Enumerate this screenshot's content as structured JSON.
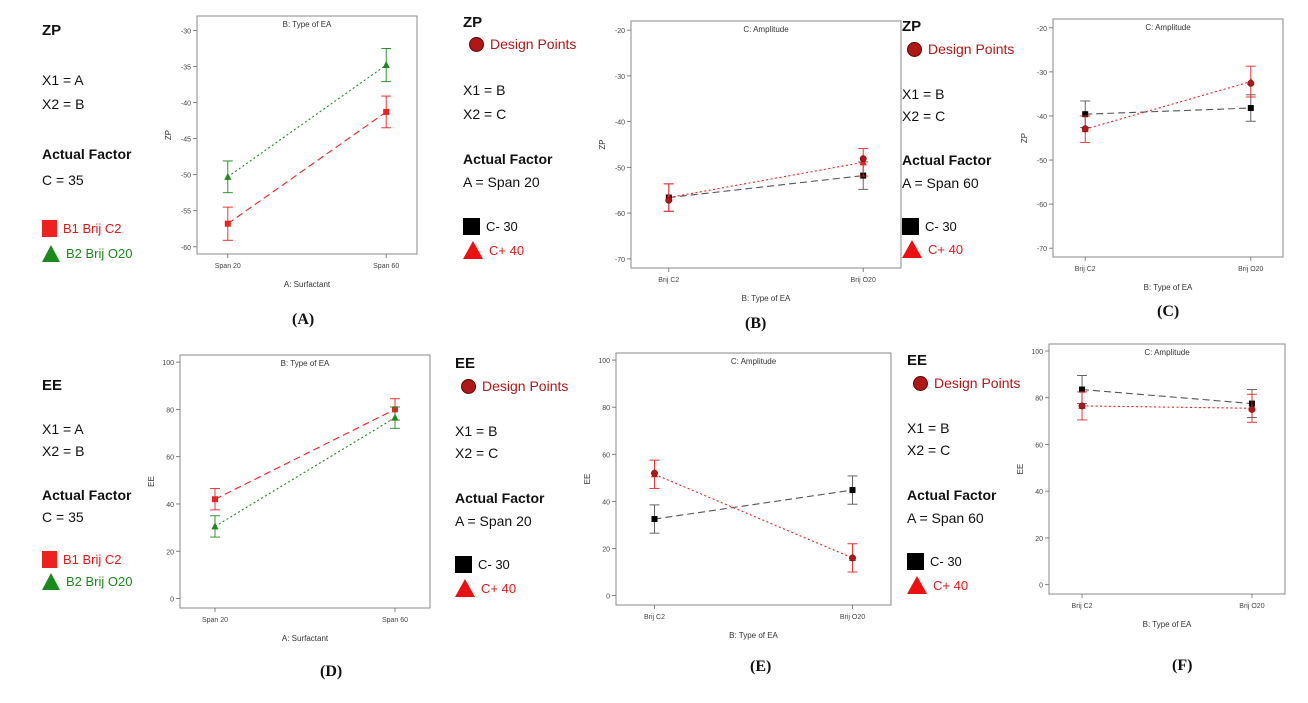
{
  "captions": [
    "(A)",
    "(B)",
    "(C)",
    "(D)",
    "(E)",
    "(F)"
  ],
  "legends": {
    "A": {
      "title": "ZP",
      "x1": "X1 = A",
      "x2": "X2 = B",
      "actual": "Actual Factor",
      "fixed": "C = 35",
      "l1": "B1 Brij C2",
      "l2": "B2 Brij O20",
      "c1": "#ee2020",
      "c2": "#1a8a1a"
    },
    "B": {
      "title": "ZP",
      "dp": "Design Points",
      "x1": "X1 = B",
      "x2": "X2 = C",
      "actual": "Actual Factor",
      "fixed": "A = Span 20",
      "l1": "C- 30",
      "l2": "C+ 40"
    },
    "C": {
      "title": "ZP",
      "dp": "Design Points",
      "x1": "X1 = B",
      "x2": "X2 = C",
      "actual": "Actual Factor",
      "fixed": "A = Span 60",
      "l1": "C- 30",
      "l2": "C+ 40"
    },
    "D": {
      "title": "EE",
      "x1": "X1 = A",
      "x2": "X2 = B",
      "actual": "Actual Factor",
      "fixed": "C = 35",
      "l1": "B1 Brij C2",
      "l2": "B2 Brij O20",
      "c1": "#ee2020",
      "c2": "#1a8a1a"
    },
    "E": {
      "title": "EE",
      "dp": "Design Points",
      "x1": "X1 = B",
      "x2": "X2 = C",
      "actual": "Actual Factor",
      "fixed": "A = Span 20",
      "l1": "C- 30",
      "l2": "C+ 40"
    },
    "F": {
      "title": "EE",
      "dp": "Design Points",
      "x1": "X1 = B",
      "x2": "X2 = C",
      "actual": "Actual Factor",
      "fixed": "A = Span 60",
      "l1": "C- 30",
      "l2": "C+ 40"
    }
  },
  "chart_data": [
    {
      "id": "A",
      "type": "line",
      "title": "B: Type of EA",
      "xlabel": "A: Surfactant",
      "ylabel": "ZP",
      "categories": [
        "Span 20",
        "Span 60"
      ],
      "ylim": [
        -61,
        -28
      ],
      "yticks": [
        -60,
        -55,
        -50,
        -45,
        -40,
        -35,
        -30
      ],
      "series": [
        {
          "name": "B1 Brij C2",
          "marker": "square",
          "dash": "dashed",
          "color": "#ee2020",
          "values": [
            -56.8,
            -41.3
          ],
          "err": [
            2.3,
            2.2
          ]
        },
        {
          "name": "B2 Brij O20",
          "marker": "triangle",
          "dash": "dotted",
          "color": "#1a8a1a",
          "values": [
            -50.3,
            -34.8
          ],
          "err": [
            2.2,
            2.3
          ]
        }
      ]
    },
    {
      "id": "B",
      "type": "line",
      "title": "C: Amplitude",
      "xlabel": "B: Type of EA",
      "ylabel": "ZP",
      "categories": [
        "Brij C2",
        "Brij O20"
      ],
      "ylim": [
        -72,
        -18
      ],
      "yticks": [
        -70,
        -60,
        -50,
        -40,
        -30,
        -20
      ],
      "series": [
        {
          "name": "C- 30",
          "marker": "square",
          "dash": "dashed",
          "color": "#000000",
          "values": [
            -56.6,
            -51.8
          ],
          "err": [
            3,
            3
          ]
        },
        {
          "name": "C+ 40",
          "marker": "triangle",
          "dash": "dotted",
          "color": "#ee2020",
          "values": [
            -56.6,
            -48.9
          ],
          "err": [
            3,
            3
          ]
        }
      ],
      "design_points": [
        [
          0,
          -57.2
        ],
        [
          1,
          -48.1
        ]
      ]
    },
    {
      "id": "C",
      "type": "line",
      "title": "C: Amplitude",
      "xlabel": "B: Type of EA",
      "ylabel": "ZP",
      "categories": [
        "Brij C2",
        "Brij O20"
      ],
      "ylim": [
        -72,
        -18
      ],
      "yticks": [
        -70,
        -60,
        -50,
        -40,
        -30,
        -20
      ],
      "series": [
        {
          "name": "C- 30",
          "marker": "square",
          "dash": "dashed",
          "color": "#000000",
          "values": [
            -39.6,
            -38.2
          ],
          "err": [
            3,
            3
          ]
        },
        {
          "name": "C+ 40",
          "marker": "triangle",
          "dash": "dotted",
          "color": "#ee2020",
          "values": [
            -43,
            -32.2
          ],
          "err": [
            3,
            3.5
          ]
        }
      ],
      "design_points": [
        [
          0,
          -42.9
        ],
        [
          1,
          -32.6
        ]
      ]
    },
    {
      "id": "D",
      "type": "line",
      "title": "B: Type of EA",
      "xlabel": "A: Surfactant",
      "ylabel": "EE",
      "categories": [
        "Span 20",
        "Span 60"
      ],
      "ylim": [
        -4,
        103
      ],
      "yticks": [
        0,
        20,
        40,
        60,
        80,
        100
      ],
      "series": [
        {
          "name": "B1 Brij C2",
          "marker": "square",
          "dash": "dashed",
          "color": "#ee2020",
          "values": [
            42,
            80
          ],
          "err": [
            4.5,
            4.5
          ]
        },
        {
          "name": "B2 Brij O20",
          "marker": "triangle",
          "dash": "dotted",
          "color": "#1a8a1a",
          "values": [
            30.5,
            76.5
          ],
          "err": [
            4.5,
            4.5
          ]
        }
      ]
    },
    {
      "id": "E",
      "type": "line",
      "title": "C: Amplitude",
      "xlabel": "B: Type of EA",
      "ylabel": "EE",
      "categories": [
        "Brij C2",
        "Brij O20"
      ],
      "ylim": [
        -4,
        103
      ],
      "yticks": [
        0,
        20,
        40,
        60,
        80,
        100
      ],
      "series": [
        {
          "name": "C- 30",
          "marker": "square",
          "dash": "dashed",
          "color": "#000000",
          "values": [
            32.5,
            44.8
          ],
          "err": [
            6,
            6
          ]
        },
        {
          "name": "C+ 40",
          "marker": "triangle",
          "dash": "dotted",
          "color": "#ee2020",
          "values": [
            51.5,
            16
          ],
          "err": [
            6,
            6
          ]
        }
      ],
      "design_points": [
        [
          0,
          52
        ],
        [
          1,
          16
        ]
      ]
    },
    {
      "id": "F",
      "type": "line",
      "title": "C: Amplitude",
      "xlabel": "B: Type of EA",
      "ylabel": "EE",
      "categories": [
        "Brij C2",
        "Brij O20"
      ],
      "ylim": [
        -4,
        103
      ],
      "yticks": [
        0,
        20,
        40,
        60,
        80,
        100
      ],
      "series": [
        {
          "name": "C- 30",
          "marker": "square",
          "dash": "dashed",
          "color": "#000000",
          "values": [
            83.5,
            77.5
          ],
          "err": [
            6,
            6
          ]
        },
        {
          "name": "C+ 40",
          "marker": "triangle",
          "dash": "dotted",
          "color": "#ee2020",
          "values": [
            76.5,
            75.5
          ],
          "err": [
            6,
            6
          ]
        }
      ],
      "design_points": [
        [
          0,
          76.5
        ],
        [
          1,
          75
        ]
      ]
    }
  ]
}
